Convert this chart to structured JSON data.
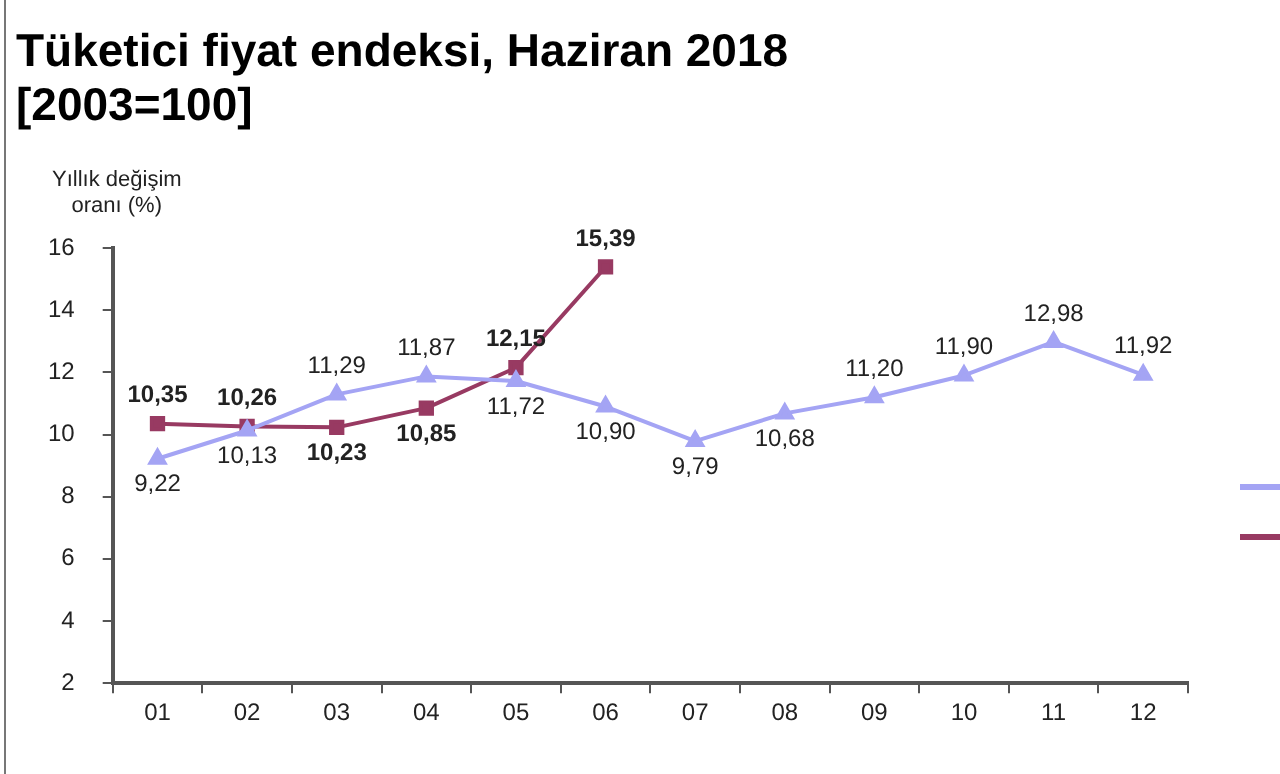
{
  "chart_data": {
    "type": "line",
    "title": "Tüketici fiyat endeksi, Haziran 2018\n[2003=100]",
    "ylabel": "Yıllık değişim\noranı (%)",
    "categories": [
      "01",
      "02",
      "03",
      "04",
      "05",
      "06",
      "07",
      "08",
      "09",
      "10",
      "11",
      "12"
    ],
    "series": [
      {
        "color": "#a4a4f4",
        "marker": "triangle",
        "values": [
          9.22,
          10.13,
          11.29,
          11.87,
          11.72,
          10.9,
          9.79,
          10.68,
          11.2,
          11.9,
          12.98,
          11.92
        ],
        "value_labels": [
          "9,22",
          "10,13",
          "11,29",
          "11,87",
          "11,72",
          "10,90",
          "9,79",
          "10,68",
          "11,20",
          "11,90",
          "12,98",
          "11,92"
        ]
      },
      {
        "color": "#983a62",
        "marker": "square",
        "values": [
          10.35,
          10.26,
          10.23,
          10.85,
          12.15,
          15.39,
          null,
          null,
          null,
          null,
          null,
          null
        ],
        "value_labels": [
          "10,35",
          "10,26",
          "10,23",
          "10,85",
          "12,15",
          "15,39",
          null,
          null,
          null,
          null,
          null,
          null
        ]
      }
    ],
    "ylim": [
      2,
      16
    ],
    "yticks": [
      2,
      4,
      6,
      8,
      10,
      12,
      14,
      16
    ],
    "grid": false,
    "line_style": "solid"
  }
}
